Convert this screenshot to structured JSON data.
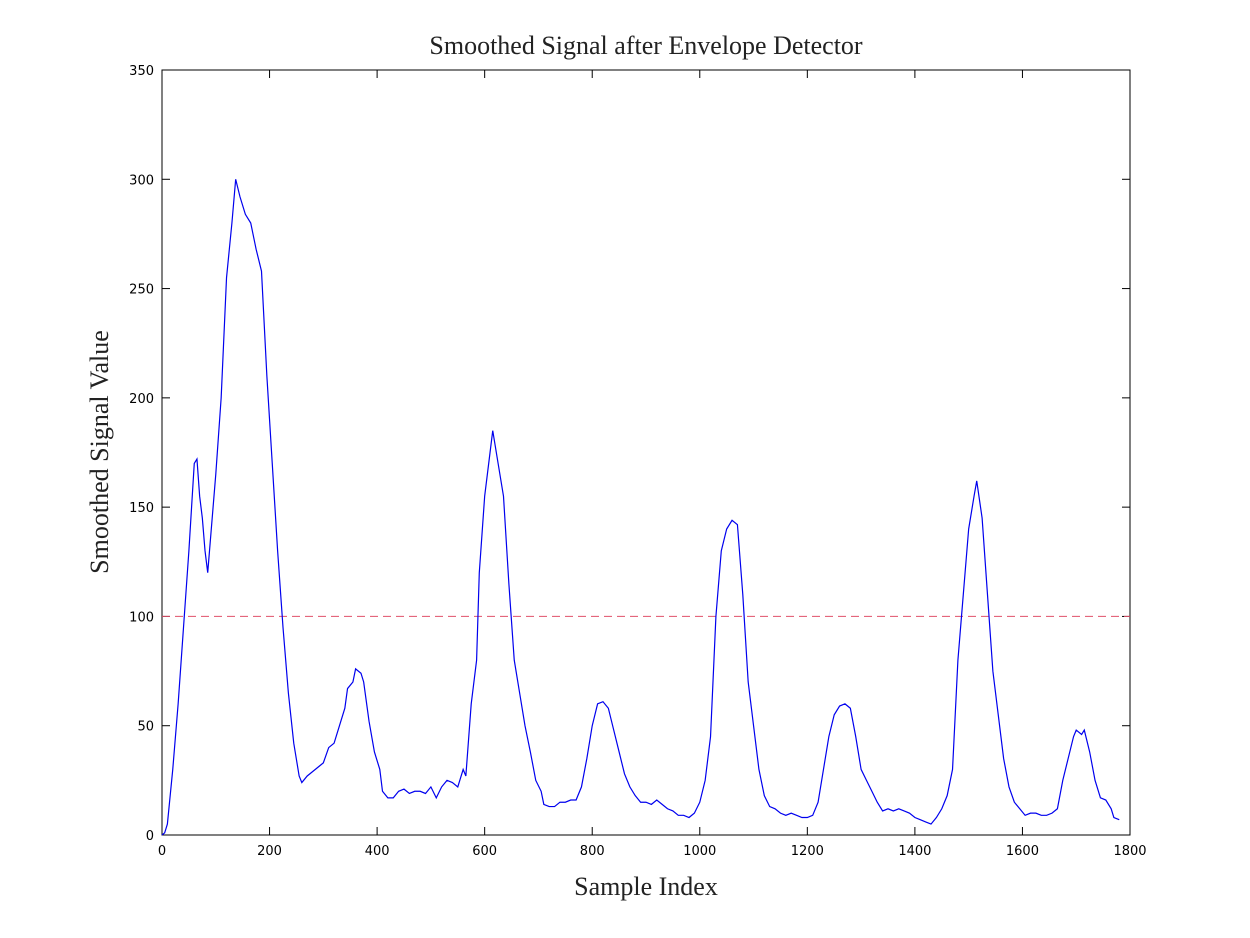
{
  "chart_data": {
    "type": "line",
    "title": "Smoothed Signal after Envelope Detector",
    "xlabel": "Sample Index",
    "ylabel": "Smoothed Signal Value",
    "x": [
      0,
      5,
      10,
      20,
      30,
      40,
      50,
      55,
      60,
      65,
      70,
      75,
      80,
      85,
      90,
      100,
      110,
      120,
      130,
      137,
      145,
      155,
      165,
      175,
      185,
      195,
      205,
      215,
      225,
      235,
      245,
      255,
      260,
      270,
      280,
      290,
      300,
      310,
      320,
      330,
      340,
      345,
      355,
      360,
      370,
      375,
      385,
      395,
      405,
      410,
      420,
      430,
      440,
      450,
      460,
      470,
      480,
      490,
      500,
      510,
      520,
      530,
      540,
      550,
      560,
      565,
      575,
      585,
      590,
      600,
      610,
      615,
      625,
      635,
      645,
      655,
      665,
      675,
      685,
      695,
      705,
      710,
      720,
      730,
      740,
      750,
      760,
      770,
      780,
      790,
      800,
      810,
      820,
      830,
      840,
      850,
      860,
      870,
      880,
      890,
      900,
      910,
      920,
      930,
      940,
      950,
      960,
      970,
      980,
      990,
      1000,
      1010,
      1020,
      1030,
      1040,
      1050,
      1060,
      1070,
      1080,
      1090,
      1100,
      1110,
      1120,
      1130,
      1140,
      1150,
      1160,
      1170,
      1180,
      1190,
      1200,
      1210,
      1220,
      1230,
      1240,
      1250,
      1260,
      1270,
      1280,
      1290,
      1300,
      1310,
      1320,
      1330,
      1340,
      1350,
      1360,
      1370,
      1380,
      1390,
      1400,
      1410,
      1420,
      1430,
      1440,
      1450,
      1460,
      1470,
      1480,
      1490,
      1500,
      1510,
      1515,
      1525,
      1535,
      1545,
      1555,
      1565,
      1575,
      1585,
      1595,
      1605,
      1615,
      1625,
      1635,
      1645,
      1655,
      1665,
      1675,
      1685,
      1695,
      1700,
      1710,
      1715,
      1725,
      1735,
      1745,
      1755,
      1765,
      1770,
      1780
    ],
    "series": [
      {
        "name": "Smoothed Signal",
        "color": "#0000ee",
        "values": [
          0,
          1,
          5,
          30,
          60,
          95,
          130,
          150,
          170,
          172,
          155,
          145,
          130,
          120,
          135,
          165,
          200,
          255,
          280,
          300,
          292,
          284,
          280,
          268,
          258,
          210,
          170,
          130,
          95,
          65,
          42,
          27,
          24,
          27,
          29,
          31,
          33,
          40,
          42,
          50,
          58,
          67,
          70,
          76,
          74,
          70,
          52,
          38,
          30,
          20,
          17,
          17,
          20,
          21,
          19,
          20,
          20,
          19,
          22,
          17,
          22,
          25,
          24,
          22,
          30,
          27,
          60,
          80,
          120,
          155,
          175,
          185,
          170,
          155,
          115,
          80,
          65,
          50,
          38,
          25,
          20,
          14,
          13,
          13,
          15,
          15,
          16,
          16,
          22,
          35,
          50,
          60,
          61,
          58,
          48,
          38,
          28,
          22,
          18,
          15,
          15,
          14,
          16,
          14,
          12,
          11,
          9,
          9,
          8,
          10,
          15,
          25,
          45,
          100,
          130,
          140,
          144,
          142,
          110,
          70,
          50,
          30,
          18,
          13,
          12,
          10,
          9,
          10,
          9,
          8,
          8,
          9,
          15,
          30,
          45,
          55,
          59,
          60,
          58,
          45,
          30,
          25,
          20,
          15,
          11,
          12,
          11,
          12,
          11,
          10,
          8,
          7,
          6,
          5,
          8,
          12,
          18,
          30,
          80,
          110,
          140,
          155,
          162,
          145,
          110,
          75,
          55,
          35,
          22,
          15,
          12,
          9,
          10,
          10,
          9,
          9,
          10,
          12,
          25,
          35,
          45,
          48,
          46,
          48,
          38,
          25,
          17,
          16,
          12,
          8,
          7
        ]
      }
    ],
    "reference_lines": [
      {
        "value": 100,
        "color": "#e0506a",
        "dashed": true
      }
    ],
    "xlim": [
      0,
      1800
    ],
    "ylim": [
      0,
      350
    ],
    "xticks": [
      0,
      200,
      400,
      600,
      800,
      1000,
      1200,
      1400,
      1600,
      1800
    ],
    "yticks": [
      0,
      50,
      100,
      150,
      200,
      250,
      300,
      350
    ],
    "grid": false
  }
}
